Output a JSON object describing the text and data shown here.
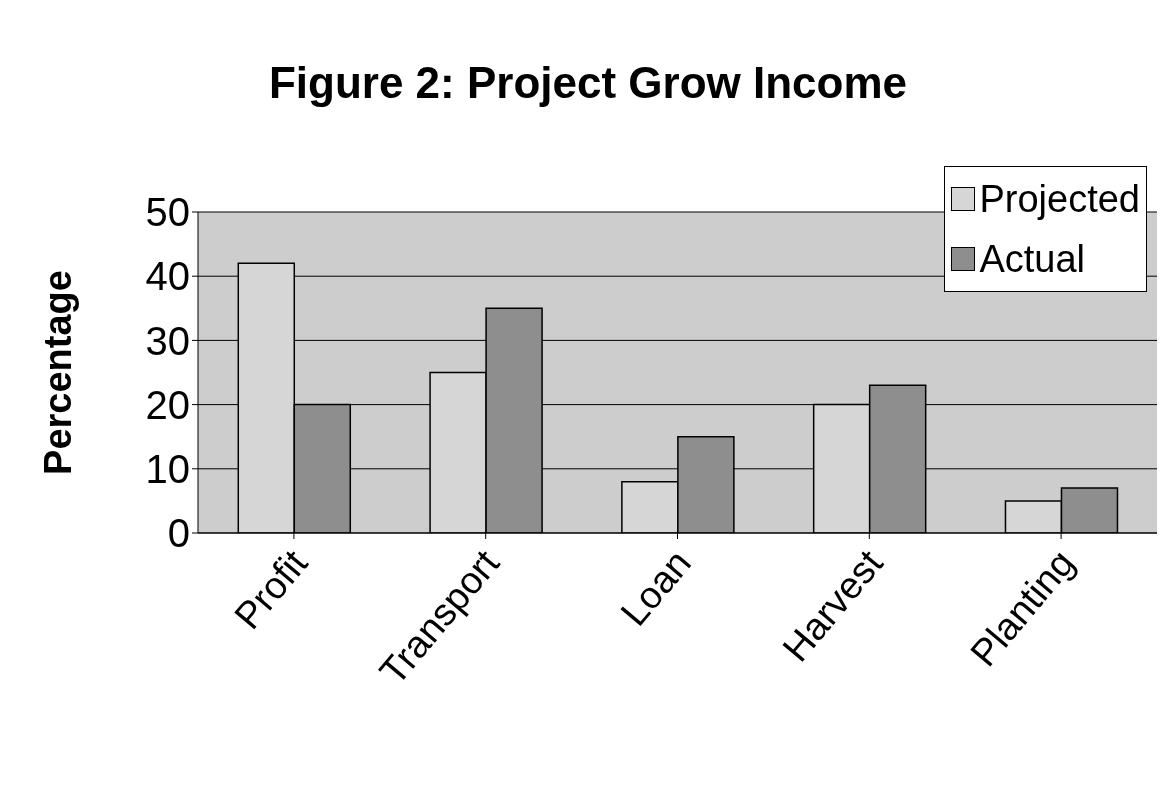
{
  "chart_data": {
    "type": "bar",
    "title": "Figure 2: Project Grow Income",
    "ylabel": "Percentage",
    "categories": [
      "Profit",
      "Transport",
      "Loan",
      "Harvest",
      "Planting"
    ],
    "series": [
      {
        "name": "Projected",
        "color": "#d6d6d6",
        "values": [
          42,
          25,
          8,
          20,
          5
        ]
      },
      {
        "name": "Actual",
        "color": "#8e8e8e",
        "values": [
          20,
          35,
          15,
          23,
          7
        ]
      }
    ],
    "ylim": [
      0,
      50
    ],
    "yticks": [
      0,
      10,
      20,
      30,
      40,
      50
    ],
    "grid": "y",
    "legend": "top right"
  }
}
